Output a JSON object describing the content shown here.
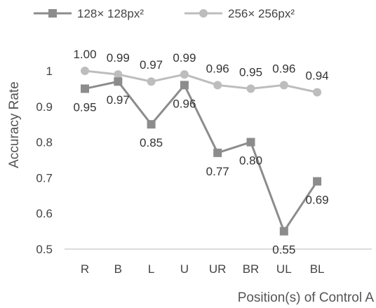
{
  "chart_data": {
    "type": "line",
    "title": "",
    "xlabel": "Position(s) of Control A",
    "ylabel": "Accuracy Rate",
    "categories": [
      "R",
      "B",
      "L",
      "U",
      "UR",
      "BR",
      "UL",
      "BL"
    ],
    "ylim": [
      0.5,
      1.0
    ],
    "yticks": [
      "0.5",
      "0.6",
      "0.7",
      "0.8",
      "0.9",
      "1"
    ],
    "grid": false,
    "legend_position": "top",
    "series": [
      {
        "name": "128× 128px²",
        "marker": "square",
        "color": "#8c8c8c",
        "values": [
          0.95,
          0.97,
          0.85,
          0.96,
          0.77,
          0.8,
          0.55,
          0.69
        ],
        "labels": [
          "0.95",
          "0.97",
          "0.85",
          "0.96",
          "0.77",
          "0.80",
          "0.55",
          "0.69"
        ]
      },
      {
        "name": "256× 256px²",
        "marker": "circle",
        "color": "#bdbdbd",
        "values": [
          1.0,
          0.99,
          0.97,
          0.99,
          0.96,
          0.95,
          0.96,
          0.94
        ],
        "labels": [
          "1.00",
          "0.99",
          "0.97",
          "0.99",
          "0.96",
          "0.95",
          "0.96",
          "0.94"
        ]
      }
    ]
  }
}
